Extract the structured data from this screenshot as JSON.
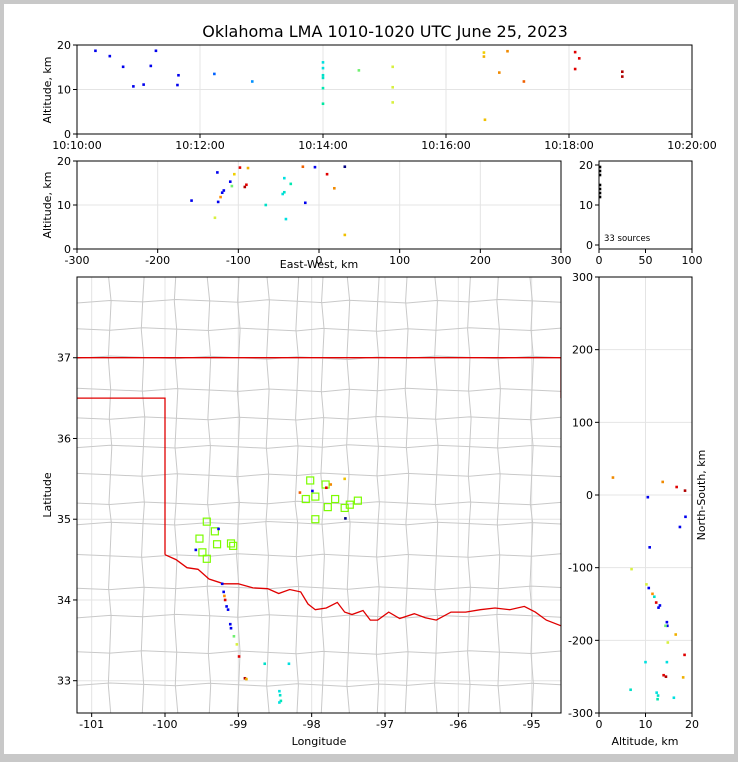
{
  "figure": {
    "title": "Oklahoma LMA 1010-1020 UTC June 25, 2023",
    "background": "#ffffff",
    "frame_color": "#c8c8c8",
    "county_color": "#c9c9c9",
    "state_color": "#e00000",
    "grid_color": "#e4e4e4"
  },
  "chart_data": [
    {
      "type": "scatter",
      "panel": "altitude-time",
      "xlabel": "",
      "ylabel": "Altitude, km",
      "xlim": [
        "10:10:00",
        "10:20:00"
      ],
      "ylim": [
        0,
        20
      ],
      "xticks": [
        "10:10:00",
        "10:12:00",
        "10:14:00",
        "10:16:00",
        "10:18:00",
        "10:20:00"
      ],
      "yticks": [
        0,
        10,
        20
      ],
      "grid": true,
      "points": [
        {
          "t": "10:10:18",
          "alt": 18.7,
          "color": "#0000ee"
        },
        {
          "t": "10:10:32",
          "alt": 17.5,
          "color": "#0000ee"
        },
        {
          "t": "10:10:45",
          "alt": 15.1,
          "color": "#0000ee"
        },
        {
          "t": "10:10:55",
          "alt": 10.7,
          "color": "#0000ee"
        },
        {
          "t": "10:11:05",
          "alt": 11.1,
          "color": "#0000ee"
        },
        {
          "t": "10:11:12",
          "alt": 15.3,
          "color": "#0000ee"
        },
        {
          "t": "10:11:17",
          "alt": 18.7,
          "color": "#0000ee"
        },
        {
          "t": "10:11:38",
          "alt": 11.0,
          "color": "#0000ee"
        },
        {
          "t": "10:11:39",
          "alt": 13.2,
          "color": "#0000ee"
        },
        {
          "t": "10:12:14",
          "alt": 13.5,
          "color": "#0060ff"
        },
        {
          "t": "10:12:51",
          "alt": 11.8,
          "color": "#0090ff"
        },
        {
          "t": "10:14:00",
          "alt": 16.1,
          "color": "#00e0e0"
        },
        {
          "t": "10:14:00",
          "alt": 14.8,
          "color": "#00e0e0"
        },
        {
          "t": "10:14:00",
          "alt": 13.2,
          "color": "#00e0c8"
        },
        {
          "t": "10:14:00",
          "alt": 12.6,
          "color": "#00e0c8"
        },
        {
          "t": "10:14:00",
          "alt": 10.3,
          "color": "#00e8b0"
        },
        {
          "t": "10:14:00",
          "alt": 6.8,
          "color": "#00e8a0"
        },
        {
          "t": "10:14:35",
          "alt": 14.3,
          "color": "#70f070"
        },
        {
          "t": "10:15:08",
          "alt": 15.1,
          "color": "#d8f040"
        },
        {
          "t": "10:15:08",
          "alt": 10.5,
          "color": "#d8f040"
        },
        {
          "t": "10:15:08",
          "alt": 7.1,
          "color": "#d8f040"
        },
        {
          "t": "10:16:37",
          "alt": 18.3,
          "color": "#f0d000"
        },
        {
          "t": "10:16:37",
          "alt": 17.4,
          "color": "#f0b000"
        },
        {
          "t": "10:16:38",
          "alt": 3.2,
          "color": "#f0c000"
        },
        {
          "t": "10:16:52",
          "alt": 13.8,
          "color": "#f08a00"
        },
        {
          "t": "10:17:00",
          "alt": 18.6,
          "color": "#f08a00"
        },
        {
          "t": "10:17:16",
          "alt": 11.8,
          "color": "#f06000"
        },
        {
          "t": "10:18:06",
          "alt": 18.4,
          "color": "#e00000"
        },
        {
          "t": "10:18:06",
          "alt": 14.6,
          "color": "#e00000"
        },
        {
          "t": "10:18:10",
          "alt": 17.0,
          "color": "#e00000"
        },
        {
          "t": "10:18:52",
          "alt": 14.0,
          "color": "#b00000"
        },
        {
          "t": "10:18:52",
          "alt": 12.9,
          "color": "#b00000"
        }
      ]
    },
    {
      "type": "scatter",
      "panel": "altitude-eastwest",
      "xlabel": "East-West, km",
      "ylabel": "Altitude, km",
      "xlim": [
        -300,
        300
      ],
      "ylim": [
        0,
        20
      ],
      "xticks": [
        -300,
        -200,
        -100,
        0,
        100,
        200,
        300
      ],
      "yticks": [
        0,
        10,
        20
      ],
      "grid": true,
      "points": [
        {
          "x": -158,
          "alt": 11.0,
          "color": "#0000ee"
        },
        {
          "x": -126,
          "alt": 17.4,
          "color": "#0000ee"
        },
        {
          "x": -125,
          "alt": 10.7,
          "color": "#0000ee"
        },
        {
          "x": -120,
          "alt": 12.8,
          "color": "#0000ee"
        },
        {
          "x": -118,
          "alt": 13.3,
          "color": "#0000ee"
        },
        {
          "x": -110,
          "alt": 15.3,
          "color": "#0000ee"
        },
        {
          "x": -122,
          "alt": 11.8,
          "color": "#ff8c00"
        },
        {
          "x": -108,
          "alt": 14.3,
          "color": "#70f070"
        },
        {
          "x": -129,
          "alt": 7.1,
          "color": "#d8f040"
        },
        {
          "x": -105,
          "alt": 17.0,
          "color": "#f0d000"
        },
        {
          "x": -98,
          "alt": 18.5,
          "color": "#e00000"
        },
        {
          "x": -92,
          "alt": 14.1,
          "color": "#b00000"
        },
        {
          "x": -90,
          "alt": 14.6,
          "color": "#e00000"
        },
        {
          "x": -88,
          "alt": 18.4,
          "color": "#f0b000"
        },
        {
          "x": -66,
          "alt": 10.0,
          "color": "#00e0c8"
        },
        {
          "x": -45,
          "alt": 12.5,
          "color": "#00e0e0"
        },
        {
          "x": -43,
          "alt": 16.1,
          "color": "#00e0e0"
        },
        {
          "x": -43,
          "alt": 12.9,
          "color": "#00e0c8"
        },
        {
          "x": -41,
          "alt": 6.8,
          "color": "#00e0e0"
        },
        {
          "x": -35,
          "alt": 14.8,
          "color": "#00e8b0"
        },
        {
          "x": -20,
          "alt": 18.7,
          "color": "#f06000"
        },
        {
          "x": -17,
          "alt": 10.5,
          "color": "#0000ee"
        },
        {
          "x": -5,
          "alt": 18.6,
          "color": "#0000ee"
        },
        {
          "x": 10,
          "alt": 17.0,
          "color": "#e00000"
        },
        {
          "x": 19,
          "alt": 13.8,
          "color": "#f08a00"
        },
        {
          "x": 32,
          "alt": 18.7,
          "color": "#000080"
        },
        {
          "x": 32,
          "alt": 3.2,
          "color": "#f0c000"
        }
      ]
    },
    {
      "type": "scatter",
      "panel": "source-histogram",
      "xlim": [
        0,
        100
      ],
      "ylim": [
        0,
        20
      ],
      "xticks": [
        0,
        50,
        100
      ],
      "yticks": [
        0,
        10,
        20
      ],
      "annotation": "33 sources",
      "points": [
        {
          "x": 0,
          "alt": 19.5
        },
        {
          "x": 0,
          "alt": 18.5
        },
        {
          "x": 0,
          "alt": 17.5
        },
        {
          "x": 0,
          "alt": 15.0
        },
        {
          "x": 0,
          "alt": 14.0
        },
        {
          "x": 0,
          "alt": 13.0
        },
        {
          "x": 0,
          "alt": 12.0
        }
      ]
    },
    {
      "type": "map",
      "panel": "plan-view",
      "xlabel": "Longitude",
      "ylabel": "Latitude",
      "xlim": [
        -101.2,
        -94.6
      ],
      "ylim": [
        32.6,
        38.0
      ],
      "xticks": [
        -101,
        -100,
        -99,
        -98,
        -97,
        -96,
        -95
      ],
      "yticks": [
        33,
        34,
        35,
        36,
        37
      ],
      "grid": true,
      "station_color": "#7cfc00",
      "stations": [
        {
          "lon": -98.02,
          "lat": 35.48
        },
        {
          "lon": -97.81,
          "lat": 35.43
        },
        {
          "lon": -98.08,
          "lat": 35.25
        },
        {
          "lon": -97.95,
          "lat": 35.28
        },
        {
          "lon": -97.68,
          "lat": 35.25
        },
        {
          "lon": -97.78,
          "lat": 35.15
        },
        {
          "lon": -97.55,
          "lat": 35.14
        },
        {
          "lon": -97.48,
          "lat": 35.18
        },
        {
          "lon": -97.37,
          "lat": 35.23
        },
        {
          "lon": -97.95,
          "lat": 35.0
        },
        {
          "lon": -99.43,
          "lat": 34.97
        },
        {
          "lon": -99.32,
          "lat": 34.85
        },
        {
          "lon": -99.53,
          "lat": 34.76
        },
        {
          "lon": -99.29,
          "lat": 34.69
        },
        {
          "lon": -99.1,
          "lat": 34.7
        },
        {
          "lon": -99.07,
          "lat": 34.67
        },
        {
          "lon": -99.49,
          "lat": 34.59
        },
        {
          "lon": -99.43,
          "lat": 34.51
        }
      ],
      "sources": [
        {
          "lon": -99.58,
          "lat": 34.62,
          "color": "#0000ee"
        },
        {
          "lon": -99.27,
          "lat": 34.88,
          "color": "#0000ee"
        },
        {
          "lon": -99.22,
          "lat": 34.2,
          "color": "#0000ee"
        },
        {
          "lon": -99.2,
          "lat": 34.1,
          "color": "#0000ee"
        },
        {
          "lon": -99.19,
          "lat": 34.05,
          "color": "#ff8c00"
        },
        {
          "lon": -99.18,
          "lat": 34.0,
          "color": "#e00000"
        },
        {
          "lon": -99.16,
          "lat": 33.92,
          "color": "#0000ee"
        },
        {
          "lon": -99.14,
          "lat": 33.88,
          "color": "#0000ee"
        },
        {
          "lon": -99.11,
          "lat": 33.7,
          "color": "#0000ee"
        },
        {
          "lon": -99.1,
          "lat": 33.65,
          "color": "#0000ee"
        },
        {
          "lon": -99.06,
          "lat": 33.55,
          "color": "#70f070"
        },
        {
          "lon": -99.02,
          "lat": 33.45,
          "color": "#d8f040"
        },
        {
          "lon": -98.99,
          "lat": 33.3,
          "color": "#e00000"
        },
        {
          "lon": -98.91,
          "lat": 33.03,
          "color": "#b00000"
        },
        {
          "lon": -98.89,
          "lat": 33.02,
          "color": "#f0b000"
        },
        {
          "lon": -98.64,
          "lat": 33.21,
          "color": "#00e0c8"
        },
        {
          "lon": -98.31,
          "lat": 33.21,
          "color": "#00e0e0"
        },
        {
          "lon": -98.44,
          "lat": 32.87,
          "color": "#00e0e0"
        },
        {
          "lon": -98.43,
          "lat": 32.82,
          "color": "#00e0c8"
        },
        {
          "lon": -98.42,
          "lat": 32.75,
          "color": "#00e8b0"
        },
        {
          "lon": -98.44,
          "lat": 32.73,
          "color": "#00e0e0"
        },
        {
          "lon": -98.16,
          "lat": 35.33,
          "color": "#f06000"
        },
        {
          "lon": -97.99,
          "lat": 35.35,
          "color": "#0000ee"
        },
        {
          "lon": -97.8,
          "lat": 35.39,
          "color": "#e00000"
        },
        {
          "lon": -97.74,
          "lat": 35.43,
          "color": "#f08a00"
        },
        {
          "lon": -97.55,
          "lat": 35.5,
          "color": "#f0c000"
        },
        {
          "lon": -97.54,
          "lat": 35.01,
          "color": "#000080"
        }
      ]
    },
    {
      "type": "scatter",
      "panel": "northsouth-altitude",
      "xlabel": "Altitude, km",
      "ylabel": "North-South, km",
      "xlim": [
        0,
        20
      ],
      "ylim": [
        -300,
        300
      ],
      "xticks": [
        0,
        10,
        20
      ],
      "yticks": [
        -300,
        -200,
        -100,
        0,
        100,
        200,
        300
      ],
      "grid": true,
      "points": [
        {
          "alt": 3.0,
          "y": 24,
          "color": "#f08a00"
        },
        {
          "alt": 13.7,
          "y": 18,
          "color": "#f08a00"
        },
        {
          "alt": 16.7,
          "y": 11,
          "color": "#e00000"
        },
        {
          "alt": 18.5,
          "y": 6,
          "color": "#b00000"
        },
        {
          "alt": 10.5,
          "y": -3,
          "color": "#0000ee"
        },
        {
          "alt": 18.6,
          "y": -30,
          "color": "#0000ee"
        },
        {
          "alt": 17.4,
          "y": -44,
          "color": "#0000ee"
        },
        {
          "alt": 10.9,
          "y": -72,
          "color": "#0000ee"
        },
        {
          "alt": 7.0,
          "y": -102,
          "color": "#d8f040"
        },
        {
          "alt": 10.2,
          "y": -123,
          "color": "#d8f040"
        },
        {
          "alt": 10.7,
          "y": -128,
          "color": "#0000ee"
        },
        {
          "alt": 11.5,
          "y": -136,
          "color": "#ff8c00"
        },
        {
          "alt": 11.9,
          "y": -140,
          "color": "#00e0c8"
        },
        {
          "alt": 12.3,
          "y": -148,
          "color": "#e00000"
        },
        {
          "alt": 13.1,
          "y": -152,
          "color": "#0000ee"
        },
        {
          "alt": 12.8,
          "y": -155,
          "color": "#0000ee"
        },
        {
          "alt": 14.6,
          "y": -175,
          "color": "#0000ee"
        },
        {
          "alt": 14.7,
          "y": -180,
          "color": "#0000ee"
        },
        {
          "alt": 14.3,
          "y": -180,
          "color": "#70f070"
        },
        {
          "alt": 16.5,
          "y": -192,
          "color": "#f0b000"
        },
        {
          "alt": 14.8,
          "y": -203,
          "color": "#d8f040"
        },
        {
          "alt": 18.4,
          "y": -220,
          "color": "#e00000"
        },
        {
          "alt": 10.0,
          "y": -230,
          "color": "#00e0e0"
        },
        {
          "alt": 14.6,
          "y": -230,
          "color": "#00e0e0"
        },
        {
          "alt": 13.9,
          "y": -248,
          "color": "#e00000"
        },
        {
          "alt": 14.4,
          "y": -250,
          "color": "#b00000"
        },
        {
          "alt": 18.1,
          "y": -251,
          "color": "#f0b000"
        },
        {
          "alt": 6.8,
          "y": -268,
          "color": "#00e0c8"
        },
        {
          "alt": 12.4,
          "y": -272,
          "color": "#00e0e0"
        },
        {
          "alt": 12.7,
          "y": -276,
          "color": "#00e0c8"
        },
        {
          "alt": 12.6,
          "y": -281,
          "color": "#00e8b0"
        },
        {
          "alt": 16.1,
          "y": -279,
          "color": "#00e0e0"
        }
      ]
    }
  ]
}
